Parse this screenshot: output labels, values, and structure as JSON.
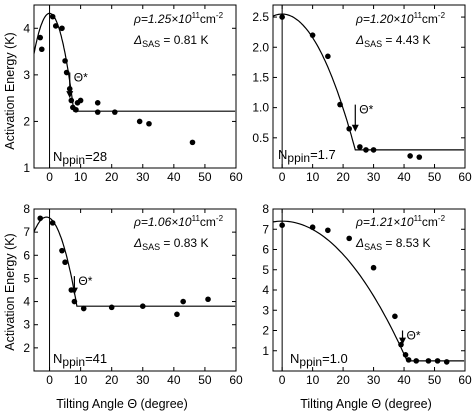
{
  "figure": {
    "ylabel": "Activation Energy (K)",
    "xlabel": "Tilting Angle Θ (degree)"
  },
  "chart_data": [
    {
      "type": "scatter",
      "panel": "top-left",
      "xlim": [
        -5,
        60
      ],
      "ylim": [
        1,
        4.5
      ],
      "xticks": [
        0,
        10,
        20,
        30,
        40,
        50,
        60
      ],
      "yticks": [
        1,
        2,
        3,
        4
      ],
      "xticklabels": [
        "0",
        "10",
        "20",
        "30",
        "40",
        "50",
        "60"
      ],
      "yticklabels": [
        "1",
        "2",
        "3",
        "4"
      ],
      "annotations": {
        "rho_main": "ρ=1.25×10",
        "rho_exp": "11",
        "rho_unit": "cm",
        "rho_unit_exp": "-2",
        "delta_sym": "Δ",
        "delta_sub": "SAS",
        "delta_val": "= 0.81 K",
        "theta_star": "Θ*",
        "n_main": "N",
        "n_sub": "ppin",
        "n_val": "=28"
      },
      "theta_star_arrow": {
        "x": 6.5,
        "y_from": 3.05,
        "y_to": 2.5
      },
      "points": [
        {
          "x": -3,
          "y": 3.8
        },
        {
          "x": -2.5,
          "y": 3.55
        },
        {
          "x": 1,
          "y": 4.25
        },
        {
          "x": 2,
          "y": 4.05
        },
        {
          "x": 4,
          "y": 4.0
        },
        {
          "x": 5,
          "y": 3.3
        },
        {
          "x": 5.5,
          "y": 3.05
        },
        {
          "x": 6.5,
          "y": 2.7
        },
        {
          "x": 7,
          "y": 2.45
        },
        {
          "x": 7.5,
          "y": 2.3
        },
        {
          "x": 8.5,
          "y": 2.25
        },
        {
          "x": 9,
          "y": 2.4
        },
        {
          "x": 10,
          "y": 2.45
        },
        {
          "x": 15.5,
          "y": 2.2
        },
        {
          "x": 15.5,
          "y": 2.4
        },
        {
          "x": 21,
          "y": 2.2
        },
        {
          "x": 29,
          "y": 2.0
        },
        {
          "x": 32,
          "y": 1.95
        },
        {
          "x": 46,
          "y": 1.55
        }
      ],
      "fit_curve": {
        "peak_x": 0,
        "peak_y": 4.32,
        "theta_c": 7.8,
        "plateau_y": 2.22
      }
    },
    {
      "type": "scatter",
      "panel": "top-right",
      "xlim": [
        -3,
        60
      ],
      "ylim": [
        0,
        2.7
      ],
      "xticks": [
        0,
        10,
        20,
        30,
        40,
        50,
        60
      ],
      "yticks": [
        0.5,
        1.0,
        1.5,
        2.0,
        2.5
      ],
      "xticklabels": [
        "0",
        "10",
        "20",
        "30",
        "40",
        "50",
        "60"
      ],
      "yticklabels": [
        "0.5",
        "1.0",
        "1.5",
        "2.0",
        "2.5"
      ],
      "annotations": {
        "rho_main": "ρ=1.20×10",
        "rho_exp": "11",
        "rho_unit": "cm",
        "rho_unit_exp": "-2",
        "delta_sym": "Δ",
        "delta_sub": "SAS",
        "delta_val": "= 4.43 K",
        "theta_star": "Θ*",
        "n_main": "N",
        "n_sub": "ppin",
        "n_val": "=1.7"
      },
      "theta_star_arrow": {
        "x": 24,
        "y_from": 1.05,
        "y_to": 0.6
      },
      "points": [
        {
          "x": 0,
          "y": 2.5
        },
        {
          "x": 10,
          "y": 2.2
        },
        {
          "x": 15,
          "y": 1.85
        },
        {
          "x": 19,
          "y": 1.05
        },
        {
          "x": 22,
          "y": 0.65
        },
        {
          "x": 25.5,
          "y": 0.35
        },
        {
          "x": 27.5,
          "y": 0.3
        },
        {
          "x": 30,
          "y": 0.3
        },
        {
          "x": 42,
          "y": 0.2
        },
        {
          "x": 45,
          "y": 0.18
        }
      ],
      "fit_curve": {
        "peak_x": 0,
        "peak_y": 2.55,
        "theta_c": 24,
        "plateau_y": 0.3
      }
    },
    {
      "type": "scatter",
      "panel": "bottom-left",
      "xlim": [
        -5,
        60
      ],
      "ylim": [
        1,
        8
      ],
      "xticks": [
        0,
        10,
        20,
        30,
        40,
        50,
        60
      ],
      "yticks": [
        2,
        3,
        4,
        5,
        6,
        7,
        8
      ],
      "xticklabels": [
        "0",
        "10",
        "20",
        "30",
        "40",
        "50",
        "60"
      ],
      "yticklabels": [
        "2",
        "3",
        "4",
        "5",
        "6",
        "7",
        "8"
      ],
      "annotations": {
        "rho_main": "ρ=1.06×10",
        "rho_exp": "11",
        "rho_unit": "cm",
        "rho_unit_exp": "-2",
        "delta_sym": "Δ",
        "delta_sub": "SAS",
        "delta_val": "= 0.83 K",
        "theta_star": "Θ*",
        "n_main": "N",
        "n_sub": "ppin",
        "n_val": "=41"
      },
      "theta_star_arrow": {
        "x": 8,
        "y_from": 5.1,
        "y_to": 4.3
      },
      "points": [
        {
          "x": -3,
          "y": 7.6
        },
        {
          "x": 1,
          "y": 7.4
        },
        {
          "x": 4,
          "y": 6.2
        },
        {
          "x": 5,
          "y": 5.7
        },
        {
          "x": 7,
          "y": 4.5
        },
        {
          "x": 8,
          "y": 4.0
        },
        {
          "x": 11,
          "y": 3.7
        },
        {
          "x": 20,
          "y": 3.75
        },
        {
          "x": 30,
          "y": 3.8
        },
        {
          "x": 41,
          "y": 3.45
        },
        {
          "x": 43,
          "y": 4.0
        },
        {
          "x": 51,
          "y": 4.1
        }
      ],
      "fit_curve": {
        "peak_x": -1,
        "peak_y": 7.65,
        "theta_c": 8.8,
        "plateau_y": 3.8
      }
    },
    {
      "type": "scatter",
      "panel": "bottom-right",
      "xlim": [
        -3,
        60
      ],
      "ylim": [
        0,
        8
      ],
      "xticks": [
        0,
        10,
        20,
        30,
        40,
        50,
        60
      ],
      "yticks": [
        1,
        2,
        3,
        4,
        5,
        6,
        7,
        8
      ],
      "xticklabels": [
        "0",
        "10",
        "20",
        "30",
        "40",
        "50",
        "60"
      ],
      "yticklabels": [
        "1",
        "2",
        "3",
        "4",
        "5",
        "6",
        "7",
        "8"
      ],
      "annotations": {
        "rho_main": "ρ=1.21×10",
        "rho_exp": "11",
        "rho_unit": "cm",
        "rho_unit_exp": "-2",
        "delta_sym": "Δ",
        "delta_sub": "SAS",
        "delta_val": "= 8.53 K",
        "theta_star": "Θ*",
        "n_main": "N",
        "n_sub": "ppin",
        "n_val": "=1.0"
      },
      "theta_star_arrow": {
        "x": 39.5,
        "y_from": 2.0,
        "y_to": 1.3
      },
      "points": [
        {
          "x": 0,
          "y": 7.2
        },
        {
          "x": 10,
          "y": 7.1
        },
        {
          "x": 15,
          "y": 6.95
        },
        {
          "x": 22,
          "y": 6.55
        },
        {
          "x": 30,
          "y": 5.1
        },
        {
          "x": 37,
          "y": 2.7
        },
        {
          "x": 39,
          "y": 1.3
        },
        {
          "x": 40.5,
          "y": 0.8
        },
        {
          "x": 41.5,
          "y": 0.55
        },
        {
          "x": 44,
          "y": 0.5
        },
        {
          "x": 48,
          "y": 0.5
        },
        {
          "x": 51,
          "y": 0.5
        },
        {
          "x": 54,
          "y": 0.45
        }
      ],
      "fit_curve": {
        "peak_x": 0,
        "peak_y": 7.4,
        "theta_c": 41,
        "plateau_y": 0.5
      }
    }
  ]
}
